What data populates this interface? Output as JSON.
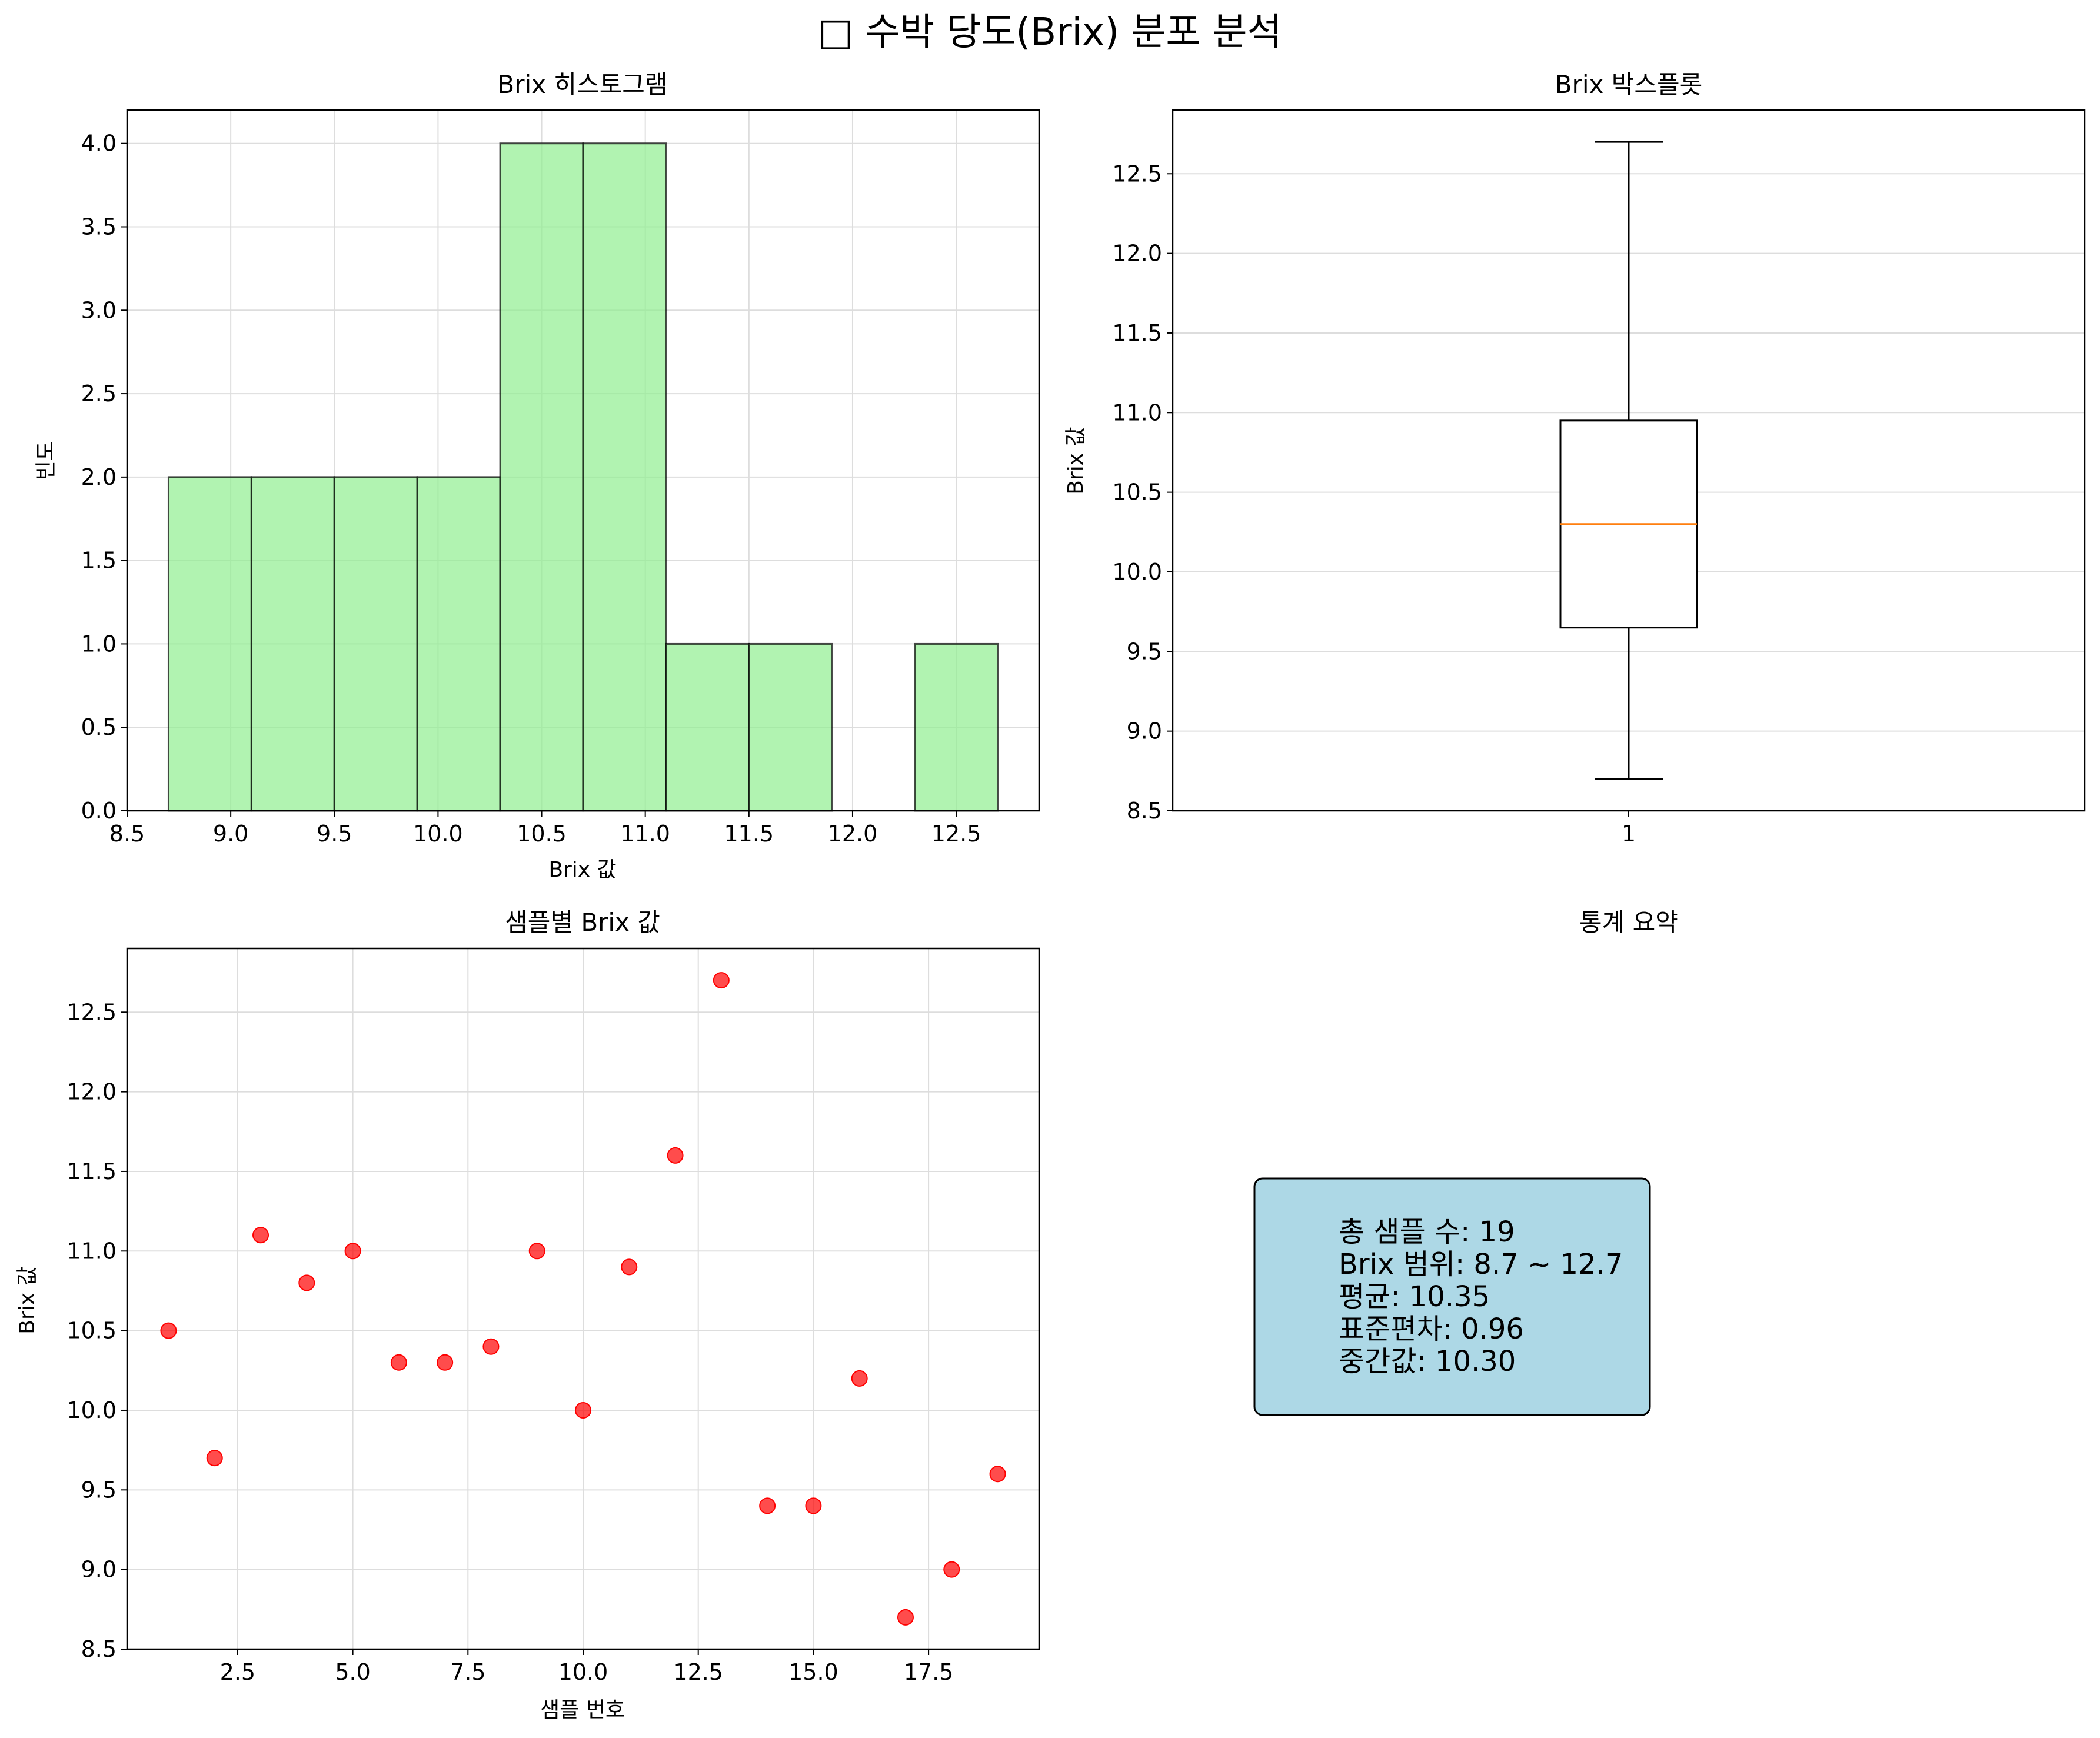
{
  "figure": {
    "title": "□ 수박 당도(Brix) 분포 분석"
  },
  "chart_data": [
    {
      "type": "bar",
      "title": "Brix 히스토그램",
      "xlabel": "Brix 값",
      "ylabel": "빈도",
      "bins": [
        {
          "x0": 8.7,
          "x1": 9.1,
          "count": 2
        },
        {
          "x0": 9.1,
          "x1": 9.5,
          "count": 2
        },
        {
          "x0": 9.5,
          "x1": 9.9,
          "count": 2
        },
        {
          "x0": 9.9,
          "x1": 10.3,
          "count": 2
        },
        {
          "x0": 10.3,
          "x1": 10.7,
          "count": 4
        },
        {
          "x0": 10.7,
          "x1": 11.1,
          "count": 4
        },
        {
          "x0": 11.1,
          "x1": 11.5,
          "count": 1
        },
        {
          "x0": 11.5,
          "x1": 11.9,
          "count": 1
        },
        {
          "x0": 11.9,
          "x1": 12.3,
          "count": 0
        },
        {
          "x0": 12.3,
          "x1": 12.7,
          "count": 1
        }
      ],
      "xlim": [
        8.5,
        12.9
      ],
      "ylim": [
        0,
        4.2
      ],
      "xticks": [
        8.5,
        9.0,
        9.5,
        10.0,
        10.5,
        11.0,
        11.5,
        12.0,
        12.5
      ],
      "xtick_labels": [
        "8.5",
        "9.0",
        "9.5",
        "10.0",
        "10.5",
        "11.0",
        "11.5",
        "12.0",
        "12.5"
      ],
      "yticks": [
        0,
        0.5,
        1,
        1.5,
        2,
        2.5,
        3,
        3.5,
        4
      ],
      "ytick_labels": [
        "0.0",
        "0.5",
        "1.0",
        "1.5",
        "2.0",
        "2.5",
        "3.0",
        "3.5",
        "4.0"
      ],
      "grid": true,
      "colors": {
        "fill": "#90ee90",
        "edge": "#000000"
      }
    },
    {
      "type": "box",
      "title": "Brix 박스플롯",
      "xlabel": "",
      "ylabel": "Brix 값",
      "box": {
        "min": 8.7,
        "q1": 9.65,
        "median": 10.3,
        "q3": 10.95,
        "max": 12.7
      },
      "xtick_labels": [
        "1"
      ],
      "ylim": [
        8.5,
        12.9
      ],
      "yticks": [
        8.5,
        9.0,
        9.5,
        10.0,
        10.5,
        11.0,
        11.5,
        12.0,
        12.5
      ],
      "ytick_labels": [
        "8.5",
        "9.0",
        "9.5",
        "10.0",
        "10.5",
        "11.0",
        "11.5",
        "12.0",
        "12.5"
      ],
      "grid": true,
      "colors": {
        "median": "#ff7f0e",
        "box": "#000000"
      }
    },
    {
      "type": "scatter",
      "title": "샘플별 Brix 값",
      "xlabel": "샘플 번호",
      "ylabel": "Brix 값",
      "x": [
        1,
        2,
        3,
        4,
        5,
        6,
        7,
        8,
        9,
        10,
        11,
        12,
        13,
        14,
        15,
        16,
        17,
        18,
        19
      ],
      "y": [
        10.5,
        9.7,
        11.1,
        10.8,
        11.0,
        10.3,
        10.3,
        10.4,
        11.0,
        10.0,
        10.9,
        11.6,
        12.7,
        9.4,
        9.4,
        10.2,
        8.7,
        9.0,
        9.6
      ],
      "xlim": [
        0.1,
        19.9
      ],
      "ylim": [
        8.5,
        12.9
      ],
      "xticks": [
        2.5,
        5.0,
        7.5,
        10.0,
        12.5,
        15.0,
        17.5
      ],
      "xtick_labels": [
        "2.5",
        "5.0",
        "7.5",
        "10.0",
        "12.5",
        "15.0",
        "17.5"
      ],
      "yticks": [
        8.5,
        9.0,
        9.5,
        10.0,
        10.5,
        11.0,
        11.5,
        12.0,
        12.5
      ],
      "ytick_labels": [
        "8.5",
        "9.0",
        "9.5",
        "10.0",
        "10.5",
        "11.0",
        "11.5",
        "12.0",
        "12.5"
      ],
      "grid": true,
      "colors": {
        "point": "#ff0000"
      }
    }
  ],
  "stats_panel": {
    "title": "통계 요약",
    "lines": [
      "총 샘플 수: 19",
      "Brix 범위: 8.7 ~ 12.7",
      "평균: 10.35",
      "표준편차: 0.96",
      "중간값: 10.30"
    ],
    "box_color": "#add8e6"
  }
}
